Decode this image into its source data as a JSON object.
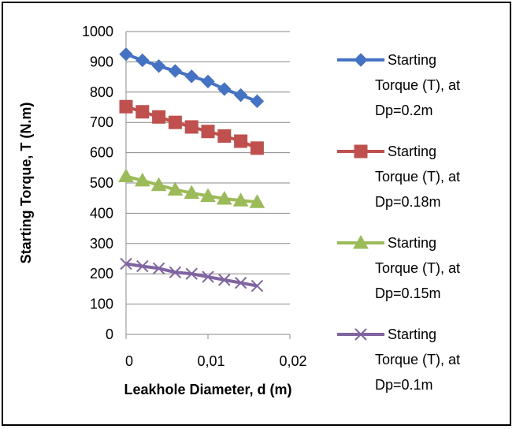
{
  "chart_data": {
    "type": "line",
    "xlabel": "Leakhole Diameter, d (m)",
    "ylabel": "Starting Torque, T (N.m)",
    "xlim": [
      0,
      0.02
    ],
    "ylim": [
      0,
      1000
    ],
    "x_ticks": [
      "0",
      "0,01",
      "0,02"
    ],
    "y_ticks": [
      "0",
      "100",
      "200",
      "300",
      "400",
      "500",
      "600",
      "700",
      "800",
      "900",
      "1000"
    ],
    "grid": "horizontal",
    "legend_position": "right",
    "x": [
      0,
      0.002,
      0.004,
      0.006,
      0.008,
      0.01,
      0.012,
      0.014,
      0.016
    ],
    "series": [
      {
        "name_lines": [
          "Starting",
          "Torque (T), at",
          "Dp=0.2m"
        ],
        "color": "#4472C4",
        "marker": "diamond",
        "values": [
          925,
          905,
          886,
          870,
          852,
          835,
          810,
          790,
          770
        ]
      },
      {
        "name_lines": [
          "Starting",
          "Torque (T), at",
          "Dp=0.18m"
        ],
        "color": "#C0504D",
        "marker": "square",
        "values": [
          752,
          735,
          718,
          700,
          685,
          670,
          655,
          638,
          615
        ]
      },
      {
        "name_lines": [
          "Starting",
          "Torque (T), at",
          "Dp=0.15m"
        ],
        "color": "#9BBB59",
        "marker": "triangle",
        "values": [
          522,
          508,
          493,
          478,
          467,
          457,
          448,
          442,
          437
        ]
      },
      {
        "name_lines": [
          "Starting",
          "Torque (T), at",
          "Dp=0.1m"
        ],
        "color": "#8064A2",
        "marker": "x",
        "values": [
          233,
          225,
          218,
          205,
          200,
          190,
          180,
          170,
          160
        ]
      }
    ]
  }
}
